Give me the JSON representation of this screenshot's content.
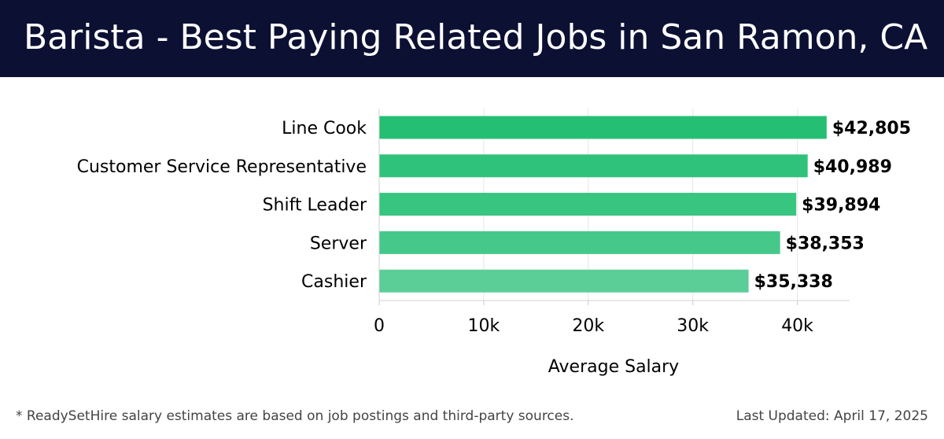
{
  "header": {
    "title": "Barista - Best Paying Related Jobs in San Ramon, CA"
  },
  "footer": {
    "note": "* ReadySetHire salary estimates are based on job postings and third-party sources.",
    "updated": "Last Updated: April 17, 2025"
  },
  "chart_data": {
    "type": "bar",
    "orientation": "horizontal",
    "title": "Barista - Best Paying Related Jobs in San Ramon, CA",
    "xlabel": "Average Salary",
    "ylabel": "",
    "categories": [
      "Line Cook",
      "Customer Service Representative",
      "Shift Leader",
      "Server",
      "Cashier"
    ],
    "values": [
      42805,
      40989,
      39894,
      38353,
      35338
    ],
    "value_labels": [
      "$42,805",
      "$40,989",
      "$39,894",
      "$38,353",
      "$35,338"
    ],
    "xlim": [
      0,
      45000
    ],
    "xticks": [
      0,
      10000,
      20000,
      30000,
      40000
    ],
    "xtick_labels": [
      "0",
      "10k",
      "20k",
      "30k",
      "40k"
    ],
    "grid": "vertical",
    "bar_colors": [
      "#25bf73",
      "#2ec27a",
      "#37c580",
      "#46c88a",
      "#5bce98"
    ],
    "grid_color": "#e6e6e6"
  }
}
